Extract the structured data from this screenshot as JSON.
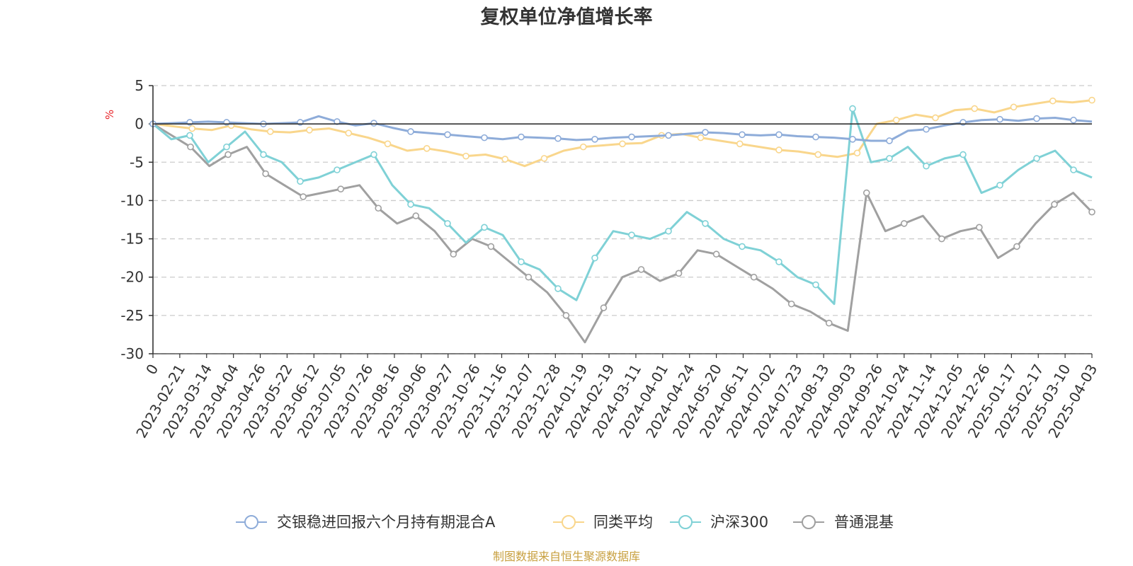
{
  "chart_data": {
    "type": "line",
    "title": "复权单位净值增长率",
    "ylabel": "%",
    "ylim": [
      -30,
      5
    ],
    "yticks": [
      5,
      0,
      -5,
      -10,
      -15,
      -20,
      -25,
      -30
    ],
    "x_tick_labels": [
      "0",
      "2023-02-21",
      "2023-03-14",
      "2023-04-04",
      "2023-04-26",
      "2023-05-22",
      "2023-06-12",
      "2023-07-05",
      "2023-07-26",
      "2023-08-16",
      "2023-09-06",
      "2023-09-27",
      "2023-10-26",
      "2023-11-16",
      "2023-12-07",
      "2023-12-28",
      "2024-01-19",
      "2024-02-19",
      "2024-03-11",
      "2024-04-01",
      "2024-04-24",
      "2024-05-20",
      "2024-06-11",
      "2024-07-02",
      "2024-07-23",
      "2024-08-13",
      "2024-09-03",
      "2024-09-26",
      "2024-10-24",
      "2024-11-14",
      "2024-12-05",
      "2024-12-26",
      "2025-01-17",
      "2025-02-17",
      "2025-03-10",
      "2025-04-03"
    ],
    "series": [
      {
        "name": "交银稳进回报六个月持有期混合A",
        "color": "#8EACD9",
        "values": [
          0,
          0.1,
          0.2,
          0.3,
          0.2,
          0.1,
          0.0,
          0.1,
          0.2,
          1.0,
          0.3,
          -0.2,
          0.1,
          -0.5,
          -1.0,
          -1.2,
          -1.4,
          -1.6,
          -1.8,
          -2.0,
          -1.7,
          -1.8,
          -1.9,
          -2.1,
          -2.0,
          -1.8,
          -1.7,
          -1.6,
          -1.5,
          -1.3,
          -1.1,
          -1.2,
          -1.4,
          -1.5,
          -1.4,
          -1.6,
          -1.7,
          -1.8,
          -2.0,
          -2.2,
          -2.2,
          -0.9,
          -0.7,
          -0.2,
          0.2,
          0.5,
          0.6,
          0.4,
          0.7,
          0.8,
          0.5,
          0.3
        ]
      },
      {
        "name": "同类平均",
        "color": "#F9D68C",
        "values": [
          0,
          -0.3,
          -0.6,
          -0.8,
          -0.2,
          -0.7,
          -1.0,
          -1.1,
          -0.8,
          -0.6,
          -1.2,
          -1.8,
          -2.6,
          -3.5,
          -3.2,
          -3.6,
          -4.2,
          -4.0,
          -4.6,
          -5.5,
          -4.5,
          -3.5,
          -3.0,
          -2.8,
          -2.6,
          -2.5,
          -1.5,
          -1.3,
          -1.8,
          -2.2,
          -2.6,
          -3.0,
          -3.4,
          -3.6,
          -4.0,
          -4.3,
          -3.8,
          0.0,
          0.5,
          1.2,
          0.8,
          1.8,
          2.0,
          1.5,
          2.2,
          2.6,
          3.0,
          2.8,
          3.1
        ]
      },
      {
        "name": "沪深300",
        "color": "#7FD1D6",
        "values": [
          0,
          -2.0,
          -1.5,
          -5.0,
          -3.0,
          -1.0,
          -4.0,
          -5.0,
          -7.5,
          -7.0,
          -6.0,
          -5.0,
          -4.0,
          -8.0,
          -10.5,
          -11.0,
          -13.0,
          -15.5,
          -13.5,
          -14.5,
          -18.0,
          -19.0,
          -21.5,
          -23.0,
          -17.5,
          -14.0,
          -14.5,
          -15.0,
          -14.0,
          -11.5,
          -13.0,
          -15.0,
          -16.0,
          -16.5,
          -18.0,
          -20.0,
          -21.0,
          -23.5,
          2.0,
          -5.0,
          -4.5,
          -3.0,
          -5.5,
          -4.5,
          -4.0,
          -9.0,
          -8.0,
          -6.0,
          -4.5,
          -3.5,
          -6.0,
          -7.0
        ]
      },
      {
        "name": "普通混基",
        "color": "#A0A0A0",
        "values": [
          0,
          -1.5,
          -3.0,
          -5.5,
          -4.0,
          -3.0,
          -6.5,
          -8.0,
          -9.5,
          -9.0,
          -8.5,
          -8.0,
          -11.0,
          -13.0,
          -12.0,
          -14.0,
          -17.0,
          -15.0,
          -16.0,
          -18.0,
          -20.0,
          -22.0,
          -25.0,
          -28.5,
          -24.0,
          -20.0,
          -19.0,
          -20.5,
          -19.5,
          -16.5,
          -17.0,
          -18.5,
          -20.0,
          -21.5,
          -23.5,
          -24.5,
          -26.0,
          -27.0,
          -9.0,
          -14.0,
          -13.0,
          -12.0,
          -15.0,
          -14.0,
          -13.5,
          -17.5,
          -16.0,
          -13.0,
          -10.5,
          -9.0,
          -11.5
        ]
      }
    ]
  },
  "legend": [
    "交银稳进回报六个月持有期混合A",
    "同类平均",
    "沪深300",
    "普通混基"
  ],
  "source_text": "制图数据来自恒生聚源数据库",
  "colors": {
    "axis": "#333333",
    "grid": "#CCCCCC",
    "unit": "#E8252A",
    "source": "#C8A040",
    "background": "#FFFFFF"
  }
}
